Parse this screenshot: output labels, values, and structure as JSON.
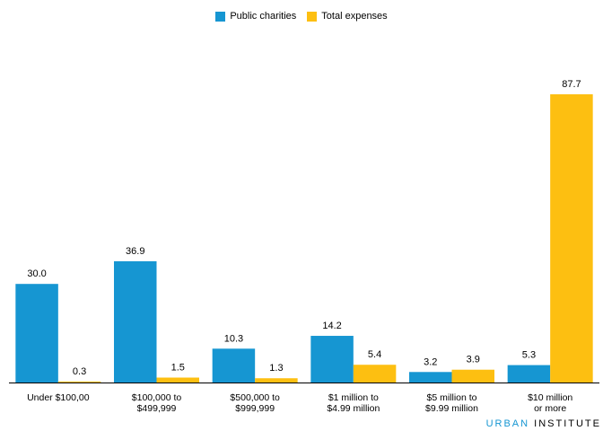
{
  "chart_data": {
    "type": "bar",
    "title": "",
    "xlabel": "",
    "ylabel": "",
    "ylim": [
      0,
      100
    ],
    "grid": false,
    "legend_position": "top-center",
    "categories": [
      [
        "Under $100,00"
      ],
      [
        "$100,000 to",
        "$499,999"
      ],
      [
        "$500,000 to",
        "$999,999"
      ],
      [
        "$1 million to",
        "$4.99 million"
      ],
      [
        "$5 million to",
        "$9.99 million"
      ],
      [
        "$10 million",
        "or more"
      ]
    ],
    "series": [
      {
        "name": "Public charities",
        "color": "#1696d2",
        "values": [
          30.0,
          36.9,
          10.3,
          14.2,
          3.2,
          5.3
        ],
        "labels": [
          "30.0",
          "36.9",
          "10.3",
          "14.2",
          "3.2",
          "5.3"
        ]
      },
      {
        "name": "Total expenses",
        "color": "#fdbf11",
        "values": [
          0.3,
          1.5,
          1.3,
          5.4,
          3.9,
          87.7
        ],
        "labels": [
          "0.3",
          "1.5",
          "1.3",
          "5.4",
          "3.9",
          "87.7"
        ]
      }
    ]
  },
  "footer": {
    "urban": "URBAN",
    "institute": "INSTITUTE"
  }
}
